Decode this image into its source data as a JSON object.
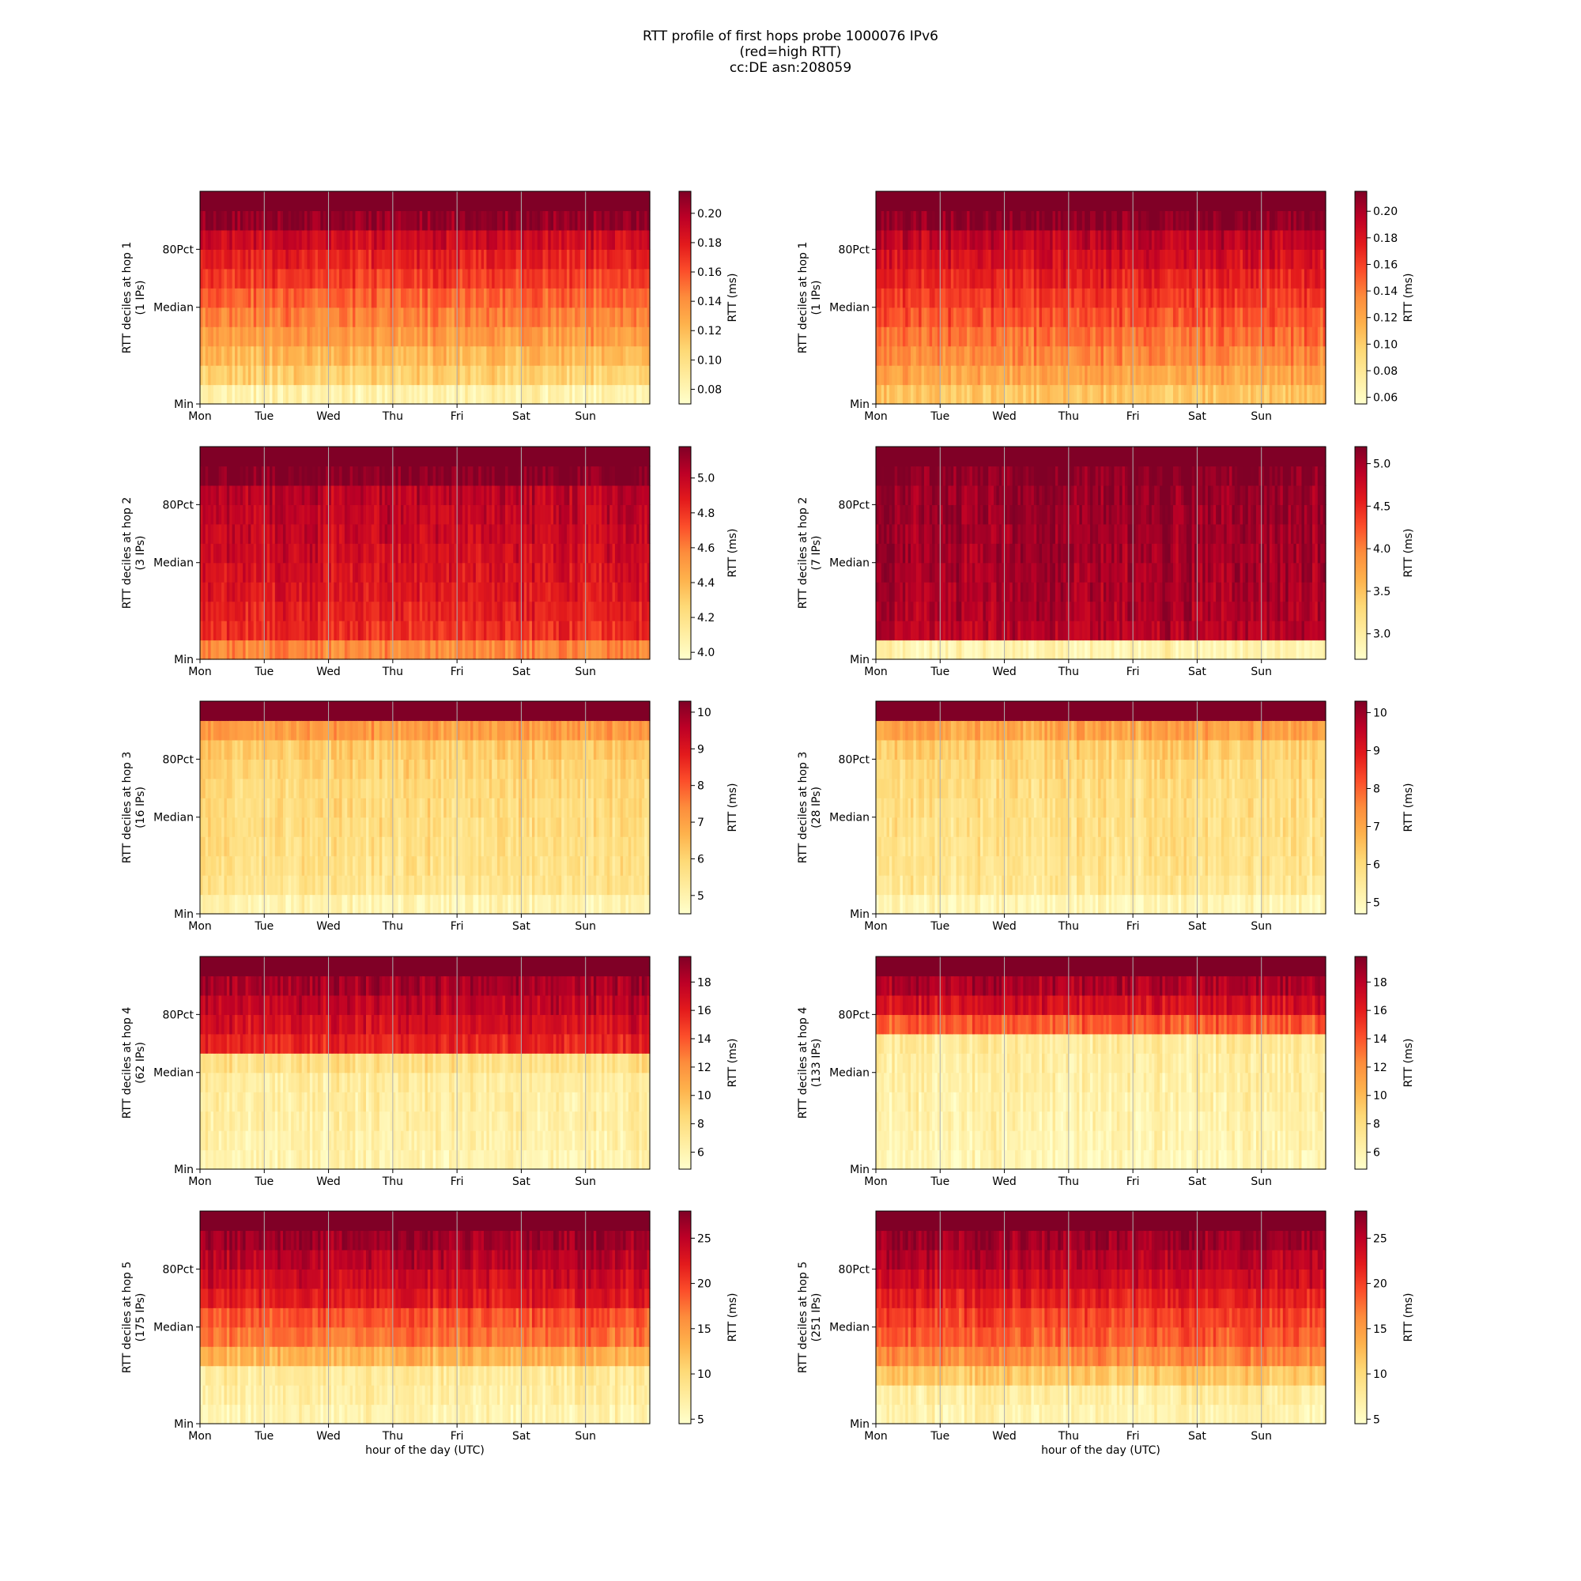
{
  "figure": {
    "title_lines": [
      "RTT profile of first hops probe 1000076 IPv6",
      "(red=high RTT)",
      "cc:DE asn:208059"
    ],
    "xlabel": "hour of the day (UTC)",
    "day_ticks": [
      "Mon",
      "Tue",
      "Wed",
      "Thu",
      "Fri",
      "Sat",
      "Sun"
    ],
    "y_ticks": [
      "Min",
      "Median",
      "80Pct"
    ],
    "colorbar_label": "RTT (ms)",
    "colormap": [
      "#ffffcc",
      "#ffeda0",
      "#fed976",
      "#feb24c",
      "#fd8d3c",
      "#fc4e2a",
      "#e31a1c",
      "#bd0026",
      "#800026"
    ]
  },
  "chart_data": [
    {
      "type": "heatmap",
      "hop": 1,
      "ylabel": "RTT deciles at hop 1",
      "ips": "(1 IPs)",
      "column": 0,
      "cbar_ticks": [
        "0.08",
        "0.10",
        "0.12",
        "0.14",
        "0.16",
        "0.18",
        "0.20"
      ],
      "cbar_range": [
        0.07,
        0.215
      ],
      "decile_profile": [
        0.09,
        0.27,
        0.36,
        0.45,
        0.52,
        0.59,
        0.67,
        0.74,
        0.82,
        0.97,
        1.0
      ]
    },
    {
      "type": "heatmap",
      "hop": 1,
      "ylabel": "RTT deciles at hop 1",
      "ips": "(1 IPs)",
      "column": 1,
      "cbar_ticks": [
        "0.06",
        "0.08",
        "0.10",
        "0.12",
        "0.14",
        "0.16",
        "0.18",
        "0.20"
      ],
      "cbar_range": [
        0.055,
        0.215
      ],
      "decile_profile": [
        0.32,
        0.42,
        0.5,
        0.56,
        0.62,
        0.68,
        0.74,
        0.8,
        0.86,
        0.98,
        1.0
      ]
    },
    {
      "type": "heatmap",
      "hop": 2,
      "ylabel": "RTT deciles at hop 2",
      "ips": "(3 IPs)",
      "column": 0,
      "cbar_ticks": [
        "4.0",
        "4.2",
        "4.4",
        "4.6",
        "4.8",
        "5.0"
      ],
      "cbar_range": [
        3.96,
        5.18
      ],
      "decile_profile": [
        0.5,
        0.7,
        0.74,
        0.77,
        0.79,
        0.81,
        0.83,
        0.85,
        0.87,
        0.99,
        1.0
      ]
    },
    {
      "type": "heatmap",
      "hop": 2,
      "ylabel": "RTT deciles at hop 2",
      "ips": "(7 IPs)",
      "column": 1,
      "cbar_ticks": [
        "3.0",
        "3.5",
        "4.0",
        "4.5",
        "5.0"
      ],
      "cbar_range": [
        2.7,
        5.2
      ],
      "decile_profile": [
        0.08,
        0.88,
        0.9,
        0.91,
        0.92,
        0.93,
        0.94,
        0.95,
        0.96,
        0.99,
        1.0
      ]
    },
    {
      "type": "heatmap",
      "hop": 3,
      "ylabel": "RTT deciles at hop 3",
      "ips": "(16 IPs)",
      "column": 0,
      "cbar_ticks": [
        "5",
        "6",
        "7",
        "8",
        "9",
        "10"
      ],
      "cbar_range": [
        4.5,
        10.3
      ],
      "decile_profile": [
        0.08,
        0.18,
        0.2,
        0.21,
        0.22,
        0.23,
        0.24,
        0.26,
        0.3,
        0.45,
        1.0
      ]
    },
    {
      "type": "heatmap",
      "hop": 3,
      "ylabel": "RTT deciles at hop 3",
      "ips": "(28 IPs)",
      "column": 1,
      "cbar_ticks": [
        "5",
        "6",
        "7",
        "8",
        "9",
        "10"
      ],
      "cbar_range": [
        4.7,
        10.3
      ],
      "decile_profile": [
        0.06,
        0.16,
        0.18,
        0.19,
        0.2,
        0.21,
        0.22,
        0.24,
        0.28,
        0.42,
        1.0
      ]
    },
    {
      "type": "heatmap",
      "hop": 4,
      "ylabel": "RTT deciles at hop 4",
      "ips": "(62 IPs)",
      "column": 0,
      "cbar_ticks": [
        "6",
        "8",
        "10",
        "12",
        "14",
        "16",
        "18"
      ],
      "cbar_range": [
        4.8,
        19.8
      ],
      "decile_profile": [
        0.08,
        0.1,
        0.11,
        0.12,
        0.13,
        0.2,
        0.73,
        0.8,
        0.86,
        0.92,
        1.0
      ]
    },
    {
      "type": "heatmap",
      "hop": 4,
      "ylabel": "RTT deciles at hop 4",
      "ips": "(133 IPs)",
      "column": 1,
      "cbar_ticks": [
        "6",
        "8",
        "10",
        "12",
        "14",
        "16",
        "18"
      ],
      "cbar_range": [
        4.8,
        19.8
      ],
      "decile_profile": [
        0.06,
        0.08,
        0.09,
        0.1,
        0.11,
        0.12,
        0.14,
        0.6,
        0.8,
        0.9,
        1.0
      ]
    },
    {
      "type": "heatmap",
      "hop": 5,
      "ylabel": "RTT deciles at hop 5",
      "ips": "(175 IPs)",
      "column": 0,
      "cbar_ticks": [
        "5",
        "10",
        "15",
        "20",
        "25"
      ],
      "cbar_range": [
        4.5,
        28.0
      ],
      "decile_profile": [
        0.08,
        0.12,
        0.14,
        0.38,
        0.55,
        0.62,
        0.76,
        0.82,
        0.88,
        0.94,
        1.0
      ]
    },
    {
      "type": "heatmap",
      "hop": 5,
      "ylabel": "RTT deciles at hop 5",
      "ips": "(251 IPs)",
      "column": 1,
      "cbar_ticks": [
        "5",
        "10",
        "15",
        "20",
        "25"
      ],
      "cbar_range": [
        4.5,
        28.0
      ],
      "decile_profile": [
        0.08,
        0.12,
        0.3,
        0.5,
        0.6,
        0.66,
        0.74,
        0.82,
        0.88,
        0.94,
        1.0
      ]
    }
  ]
}
